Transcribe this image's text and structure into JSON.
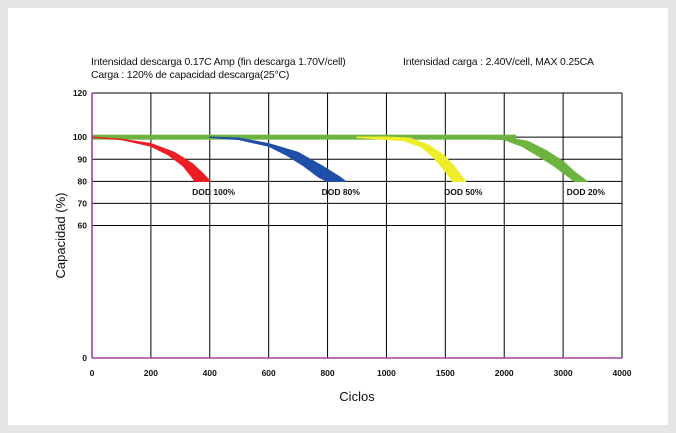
{
  "header": {
    "line1_left": "Intensidad descarga 0.17C Amp (fin descarga 1.70V/cell)",
    "line1_right": "Intensidad carga : 2.40V/cell, MAX 0.25CA",
    "line2": "Carga : 120% de capacidad descarga(25°C)"
  },
  "chart_data": {
    "type": "area",
    "xlabel": "Ciclos",
    "ylabel": "Capacidad (%)",
    "xlim": [
      0,
      4000
    ],
    "ylim": [
      0,
      120
    ],
    "x_tick_positions": [
      0,
      200,
      400,
      600,
      800,
      1000,
      1500,
      2000,
      3000,
      4000
    ],
    "x_tick_labels": [
      "0",
      "200",
      "400",
      "600",
      "800",
      "1000",
      "1500",
      "2000",
      "3000",
      "4000"
    ],
    "y_ticks": [
      0,
      60,
      70,
      80,
      90,
      100,
      120
    ],
    "y_tick_labels": [
      "0",
      "60",
      "70",
      "80",
      "90",
      "100",
      "120"
    ],
    "grid": true,
    "colors": {
      "axis": "#a040a0",
      "grid": "#000000",
      "series": [
        "#ee1c25",
        "#1f4fa8",
        "#eded2a",
        "#6cb33f"
      ]
    },
    "series": [
      {
        "name": "DOD 100%",
        "upper": [
          [
            0,
            100
          ],
          [
            100,
            99
          ],
          [
            200,
            97
          ],
          [
            280,
            93
          ],
          [
            340,
            88
          ],
          [
            380,
            83
          ],
          [
            400,
            80
          ]
        ],
        "lower": [
          [
            0,
            100
          ],
          [
            100,
            99
          ],
          [
            200,
            96
          ],
          [
            260,
            92
          ],
          [
            310,
            87
          ],
          [
            340,
            82
          ],
          [
            350,
            80
          ]
        ]
      },
      {
        "name": "DOD 80%",
        "upper": [
          [
            400,
            100
          ],
          [
            500,
            99.5
          ],
          [
            600,
            97
          ],
          [
            700,
            93
          ],
          [
            780,
            87
          ],
          [
            840,
            82
          ],
          [
            860,
            80
          ]
        ],
        "lower": [
          [
            400,
            100
          ],
          [
            500,
            99
          ],
          [
            600,
            96
          ],
          [
            660,
            92
          ],
          [
            720,
            87
          ],
          [
            770,
            82
          ],
          [
            800,
            80
          ]
        ]
      },
      {
        "name": "DOD 50%",
        "upper": [
          [
            1000,
            100
          ],
          [
            1200,
            99.5
          ],
          [
            1350,
            96.5
          ],
          [
            1480,
            92
          ],
          [
            1570,
            87
          ],
          [
            1640,
            82
          ],
          [
            1670,
            80
          ]
        ],
        "lower": [
          [
            900,
            100
          ],
          [
            1150,
            98.5
          ],
          [
            1300,
            95.5
          ],
          [
            1400,
            91
          ],
          [
            1480,
            86
          ],
          [
            1540,
            82
          ],
          [
            1560,
            80
          ]
        ]
      },
      {
        "name": "DOD 20%",
        "upper": [
          [
            1500,
            100
          ],
          [
            2000,
            100
          ],
          [
            2400,
            98
          ],
          [
            2700,
            94
          ],
          [
            3000,
            89
          ],
          [
            3200,
            84
          ],
          [
            3400,
            80
          ]
        ],
        "lower": [
          [
            1500,
            100
          ],
          [
            2000,
            99
          ],
          [
            2300,
            96
          ],
          [
            2550,
            92
          ],
          [
            2850,
            87
          ],
          [
            3050,
            83
          ],
          [
            3200,
            80
          ]
        ]
      }
    ],
    "dod_labels": [
      {
        "text": "DOD 100%",
        "x": 340,
        "y": 78
      },
      {
        "text": "DOD 80%",
        "x": 780,
        "y": 78
      },
      {
        "text": "DOD 50%",
        "x": 1490,
        "y": 78
      },
      {
        "text": "DOD 20%",
        "x": 3060,
        "y": 78
      }
    ],
    "top_band": {
      "x_from": 0,
      "x_to": 2200,
      "y": 100,
      "color": "#6cb33f"
    }
  }
}
